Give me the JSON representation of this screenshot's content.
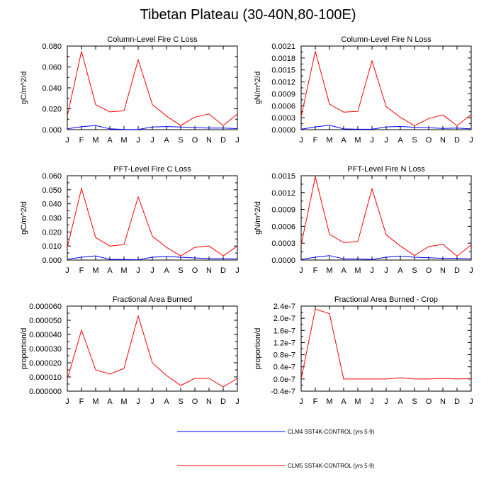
{
  "title": "Tibetan Plateau (30-40N,80-100E)",
  "colors": {
    "clm4": "#0000ff",
    "clm5": "#ff0000",
    "axis": "#000000"
  },
  "legend": [
    {
      "label": "CLM4 SST4K-CONTROL (yrs 5-9)",
      "color": "#0000ff"
    },
    {
      "label": "CLM5 SST4K-CONTROL (yrs 5-9)",
      "color": "#ff0000"
    }
  ],
  "chart_data": [
    {
      "type": "line",
      "title": "Column-Level Fire C Loss",
      "ylabel": "gC/m^2/d",
      "categories": [
        "J",
        "F",
        "M",
        "A",
        "M",
        "J",
        "J",
        "A",
        "S",
        "O",
        "N",
        "D",
        "J"
      ],
      "ylim": [
        0,
        0.08
      ],
      "yticks": [
        "0.000",
        "0.020",
        "0.040",
        "0.060",
        "0.080"
      ],
      "series": [
        {
          "name": "CLM4 SST4K-CONTROL (yrs 5-9)",
          "values": [
            0.0008,
            0.0028,
            0.004,
            0.0008,
            0.0002,
            0.0002,
            0.0025,
            0.003,
            0.0025,
            0.002,
            0.0015,
            0.0015,
            0.001
          ]
        },
        {
          "name": "CLM5 SST4K-CONTROL (yrs 5-9)",
          "values": [
            0.013,
            0.075,
            0.024,
            0.017,
            0.018,
            0.067,
            0.024,
            0.013,
            0.004,
            0.012,
            0.015,
            0.004,
            0.015
          ]
        }
      ]
    },
    {
      "type": "line",
      "title": "Column-Level Fire N Loss",
      "ylabel": "gN/m^2/d",
      "categories": [
        "J",
        "F",
        "M",
        "A",
        "M",
        "J",
        "J",
        "A",
        "S",
        "O",
        "N",
        "D",
        "J"
      ],
      "ylim": [
        0,
        0.0021
      ],
      "yticks": [
        "0.0000",
        "0.0003",
        "0.0006",
        "0.0009",
        "0.0012",
        "0.0015",
        "0.0018",
        "0.0021"
      ],
      "series": [
        {
          "name": "CLM4 SST4K-CONTROL (yrs 5-9)",
          "values": [
            1e-05,
            7e-05,
            0.00011,
            2e-05,
            1e-05,
            1e-05,
            7e-05,
            8e-05,
            6e-05,
            5e-05,
            3e-05,
            4e-05,
            2e-05
          ]
        },
        {
          "name": "CLM5 SST4K-CONTROL (yrs 5-9)",
          "values": [
            0.00033,
            0.00197,
            0.00064,
            0.00044,
            0.00046,
            0.00173,
            0.00058,
            0.00031,
            0.0001,
            0.00028,
            0.00037,
            0.0001,
            0.00038
          ]
        }
      ]
    },
    {
      "type": "line",
      "title": "PFT-Level Fire C Loss",
      "ylabel": "gC/m^2/d",
      "categories": [
        "J",
        "F",
        "M",
        "A",
        "M",
        "J",
        "J",
        "A",
        "S",
        "O",
        "N",
        "D",
        "J"
      ],
      "ylim": [
        0,
        0.06
      ],
      "yticks": [
        "0.000",
        "0.010",
        "0.020",
        "0.030",
        "0.040",
        "0.050",
        "0.060"
      ],
      "series": [
        {
          "name": "CLM4 SST4K-CONTROL (yrs 5-9)",
          "values": [
            0.0005,
            0.002,
            0.003,
            0.0005,
            0.0004,
            0.0002,
            0.002,
            0.0025,
            0.002,
            0.0015,
            0.001,
            0.001,
            0.0008
          ]
        },
        {
          "name": "CLM5 SST4K-CONTROL (yrs 5-9)",
          "values": [
            0.009,
            0.051,
            0.016,
            0.01,
            0.011,
            0.045,
            0.017,
            0.009,
            0.003,
            0.009,
            0.01,
            0.003,
            0.01
          ]
        }
      ]
    },
    {
      "type": "line",
      "title": "PFT-Level Fire N Loss",
      "ylabel": "gN/m^2/d",
      "categories": [
        "J",
        "F",
        "M",
        "A",
        "M",
        "J",
        "J",
        "A",
        "S",
        "O",
        "N",
        "D",
        "J"
      ],
      "ylim": [
        0,
        0.0015
      ],
      "yticks": [
        "0.0000",
        "0.0003",
        "0.0006",
        "0.0009",
        "0.0012",
        "0.0015"
      ],
      "series": [
        {
          "name": "CLM4 SST4K-CONTROL (yrs 5-9)",
          "values": [
            1e-05,
            5e-05,
            8e-05,
            2e-05,
            2e-05,
            1e-05,
            5e-05,
            7e-05,
            5e-05,
            4e-05,
            3e-05,
            3e-05,
            2e-05
          ]
        },
        {
          "name": "CLM5 SST4K-CONTROL (yrs 5-9)",
          "values": [
            0.00027,
            0.00148,
            0.00046,
            0.00031,
            0.00033,
            0.00127,
            0.00045,
            0.00025,
            8e-05,
            0.00024,
            0.00028,
            7e-05,
            0.00027
          ]
        }
      ]
    },
    {
      "type": "line",
      "title": "Fractional Area Burned",
      "ylabel": "proportion/d",
      "categories": [
        "J",
        "F",
        "M",
        "A",
        "M",
        "J",
        "J",
        "A",
        "S",
        "O",
        "N",
        "D",
        "J"
      ],
      "ylim": [
        0,
        6e-05
      ],
      "yticks": [
        "0.000000",
        "0.000010",
        "0.000020",
        "0.000030",
        "0.000040",
        "0.000050",
        "0.000060"
      ],
      "series": [
        {
          "name": "CLM5 SST4K-CONTROL (yrs 5-9)",
          "values": [
            8.5e-06,
            4.3e-05,
            1.5e-05,
            1.2e-05,
            1.6e-05,
            5.3e-05,
            2e-05,
            1.1e-05,
            4e-06,
            9e-06,
            9e-06,
            3e-06,
            9e-06
          ]
        }
      ]
    },
    {
      "type": "line",
      "title": "Fractional Area Burned - Crop",
      "ylabel": "proportion/d",
      "categories": [
        "J",
        "F",
        "M",
        "A",
        "M",
        "J",
        "J",
        "A",
        "S",
        "O",
        "N",
        "D",
        "J"
      ],
      "ylim": [
        -4e-08,
        2.4e-07
      ],
      "yticks": [
        "-0.4e-7",
        "0.0e-7",
        "0.4e-7",
        "0.8e-7",
        "1.2e-7",
        "1.6e-7",
        "2.0e-7",
        "2.4e-7"
      ],
      "series": [
        {
          "name": "CLM5 SST4K-CONTROL (yrs 5-9)",
          "values": [
            0.0,
            2.3e-07,
            2.15e-07,
            0.0,
            0.0,
            -1e-10,
            0.0,
            4e-09,
            0.0,
            0.0,
            2e-09,
            0.0,
            1e-09
          ]
        }
      ]
    }
  ]
}
